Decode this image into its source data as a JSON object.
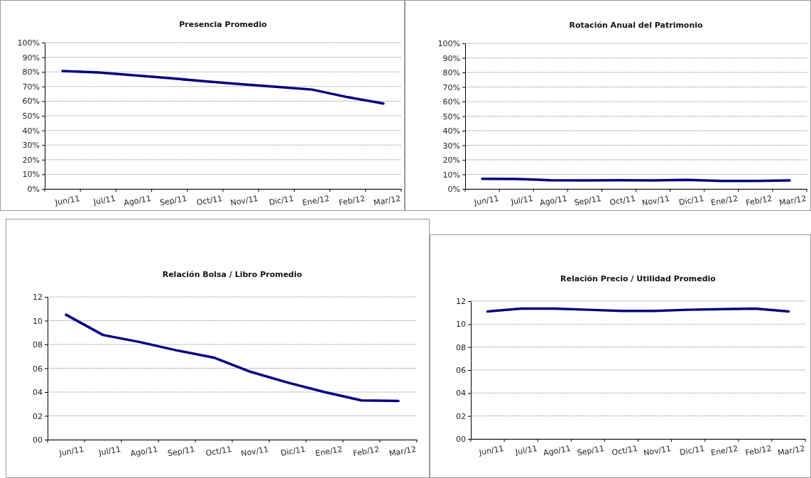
{
  "chart_data": [
    {
      "type": "line",
      "title": "Presencia Promedio",
      "categories": [
        "Jun/11",
        "Jul/11",
        "Ago/11",
        "Sep/11",
        "Oct/11",
        "Nov/11",
        "Dic/11",
        "Ene/12",
        "Feb/12",
        "Mar/12"
      ],
      "series": [
        {
          "color": "#000080",
          "values": [
            80.6,
            79.6,
            77.7,
            75.7,
            73.6,
            71.6,
            69.8,
            67.9,
            62.7,
            58.4
          ]
        }
      ],
      "ylim": [
        0,
        100
      ],
      "yticks": [
        {
          "value": 0,
          "label": "0%"
        },
        {
          "value": 10,
          "label": "10%"
        },
        {
          "value": 20,
          "label": "20%"
        },
        {
          "value": 30,
          "label": "30%"
        },
        {
          "value": 40,
          "label": "40%"
        },
        {
          "value": 50,
          "label": "50%"
        },
        {
          "value": 60,
          "label": "60%"
        },
        {
          "value": 70,
          "label": "70%"
        },
        {
          "value": 80,
          "label": "80%"
        },
        {
          "value": 90,
          "label": "90%"
        },
        {
          "value": 100,
          "label": "100%"
        }
      ],
      "grid": "y"
    },
    {
      "type": "line",
      "title": "Rotación Anual del Patrimonio",
      "categories": [
        "Jun/11",
        "Jul/11",
        "Ago/11",
        "Sep/11",
        "Oct/11",
        "Nov/11",
        "Dic/11",
        "Ene/12",
        "Feb/12",
        "Mar/12"
      ],
      "series": [
        {
          "color": "#000080",
          "values": [
            7,
            6.8,
            6,
            5.9,
            6,
            5.9,
            6.2,
            5.5,
            5.5,
            5.9
          ]
        }
      ],
      "ylim": [
        0,
        100
      ],
      "yticks": [
        {
          "value": 0,
          "label": "0%"
        },
        {
          "value": 10,
          "label": "10%"
        },
        {
          "value": 20,
          "label": "20%"
        },
        {
          "value": 30,
          "label": "30%"
        },
        {
          "value": 40,
          "label": "40%"
        },
        {
          "value": 50,
          "label": "50%"
        },
        {
          "value": 60,
          "label": "60%"
        },
        {
          "value": 70,
          "label": "70%"
        },
        {
          "value": 80,
          "label": "80%"
        },
        {
          "value": 90,
          "label": "90%"
        },
        {
          "value": 100,
          "label": "100%"
        }
      ],
      "grid": "y"
    },
    {
      "type": "line",
      "title": "Relación Bolsa / Libro Promedio",
      "categories": [
        "Jun/11",
        "Jul/11",
        "Ago/11",
        "Sep/11",
        "Oct/11",
        "Nov/11",
        "Dic/11",
        "Ene/12",
        "Feb/12",
        "Mar/12"
      ],
      "series": [
        {
          "color": "#000080",
          "values": [
            10.5,
            8.8,
            8.2,
            7.5,
            6.9,
            5.7,
            4.8,
            4.0,
            3.3,
            3.25
          ]
        }
      ],
      "ylim": [
        0,
        12
      ],
      "yticks": [
        {
          "value": 0,
          "label": "00"
        },
        {
          "value": 2,
          "label": "02"
        },
        {
          "value": 4,
          "label": "04"
        },
        {
          "value": 6,
          "label": "06"
        },
        {
          "value": 8,
          "label": "08"
        },
        {
          "value": 10,
          "label": "10"
        },
        {
          "value": 12,
          "label": "12"
        }
      ],
      "grid": "y"
    },
    {
      "type": "line",
      "title": "Relación Precio / Utilidad Promedio",
      "categories": [
        "Jun/11",
        "Jul/11",
        "Ago/11",
        "Sep/11",
        "Oct/11",
        "Nov/11",
        "Dic/11",
        "Ene/12",
        "Feb/12",
        "Mar/12"
      ],
      "series": [
        {
          "color": "#000080",
          "values": [
            11.1,
            11.35,
            11.35,
            11.25,
            11.15,
            11.15,
            11.25,
            11.3,
            11.35,
            11.1
          ]
        }
      ],
      "ylim": [
        0,
        12
      ],
      "yticks": [
        {
          "value": 0,
          "label": "00"
        },
        {
          "value": 2,
          "label": "02"
        },
        {
          "value": 4,
          "label": "04"
        },
        {
          "value": 6,
          "label": "06"
        },
        {
          "value": 8,
          "label": "08"
        },
        {
          "value": 10,
          "label": "10"
        },
        {
          "value": 12,
          "label": "12"
        }
      ],
      "grid": "y"
    }
  ]
}
